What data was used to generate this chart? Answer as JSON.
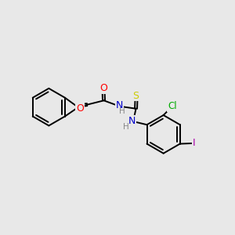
{
  "background_color": "#e8e8e8",
  "bond_color": "#000000",
  "atom_colors": {
    "O": "#ff0000",
    "N": "#0000cc",
    "S": "#cccc00",
    "Cl": "#00aa00",
    "I": "#aa00aa",
    "H": "#888888",
    "C": "#000000"
  },
  "bg": "#e8e8e8",
  "lw": 1.4,
  "fs": 8.5
}
